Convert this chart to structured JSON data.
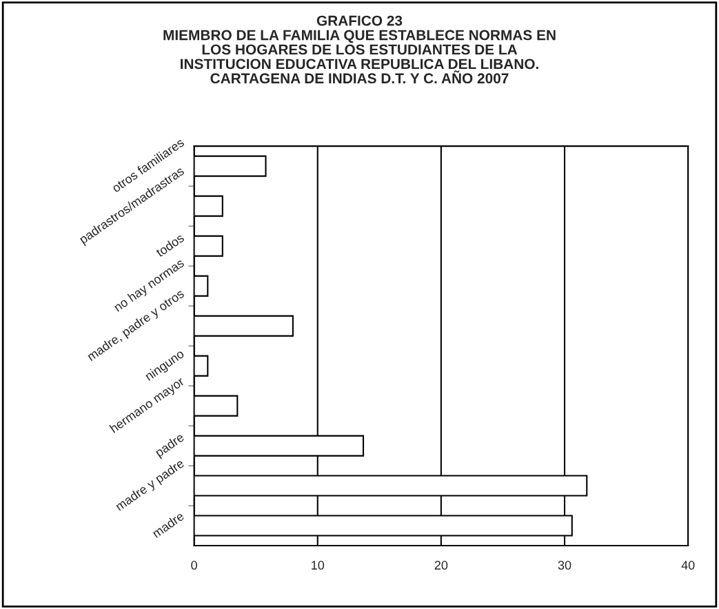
{
  "chart_data": {
    "type": "bar",
    "orientation": "horizontal",
    "title": "GRAFICO 23\nMIEMBRO DE LA FAMILIA QUE ESTABLECE NORMAS EN\nLOS HOGARES DE LOS ESTUDIANTES DE LA\nINSTITUCION EDUCATIVA REPUBLICA DEL LIBANO.\nCARTAGENA DE INDIAS D.T. Y C. AÑO 2007",
    "categories": [
      "otros familiares",
      "padrastros/madrastras",
      "todos",
      "no hay normas",
      "madre, padre y otros",
      "ninguno",
      "hermano mayor",
      "padre",
      "madre y padre",
      "madre"
    ],
    "values": [
      5.8,
      2.3,
      2.3,
      1.1,
      8.0,
      1.1,
      3.5,
      13.7,
      31.8,
      30.6
    ],
    "color": "#ffffff",
    "xlim": [
      0,
      40
    ],
    "xticks": [
      0,
      10,
      20,
      30,
      40
    ],
    "grid": "x",
    "legend": false
  }
}
